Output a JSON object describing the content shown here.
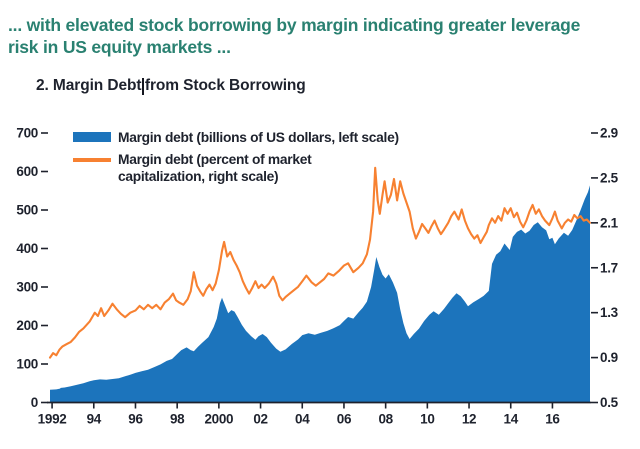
{
  "header": {
    "line1": "... with elevated stock borrowing by margin indicating greater leverage",
    "line2": "risk in US equity markets ...",
    "color": "#2a8171"
  },
  "figure": {
    "title_part1": "2. Margin Debt",
    "title_part2": "from Stock Borrowing",
    "title_full": "2. Margin Debt from Stock Borrowing",
    "cursor_color": "#14161f"
  },
  "text_color": "#1e222d",
  "chart_data": {
    "type": "area",
    "title": "2. Margin Debt from Stock Borrowing",
    "grid": false,
    "legend_position": "top-left",
    "series": [
      {
        "name": "Margin debt (billions of US dollars, left scale)",
        "style": "area",
        "axis": "left",
        "color": "#1c74bc",
        "x": [
          1991.9,
          1992.2,
          1992.38,
          1992.42,
          1992.6,
          1992.9,
          1993.2,
          1993.5,
          1993.8,
          1994.0,
          1994.3,
          1994.6,
          1994.9,
          1995.2,
          1995.5,
          1995.8,
          1996.0,
          1996.3,
          1996.6,
          1996.9,
          1997.2,
          1997.5,
          1997.75,
          1997.85,
          1998.0,
          1998.2,
          1998.45,
          1998.65,
          1998.8,
          1999.0,
          1999.2,
          1999.5,
          1999.75,
          1999.9,
          2000.05,
          2000.15,
          2000.3,
          2000.45,
          2000.6,
          2000.75,
          2000.9,
          2001.1,
          2001.3,
          2001.55,
          2001.75,
          2001.9,
          2002.1,
          2002.3,
          2002.5,
          2002.75,
          2002.95,
          2003.2,
          2003.5,
          2003.8,
          2004.0,
          2004.3,
          2004.6,
          2004.9,
          2005.2,
          2005.5,
          2005.8,
          2006.0,
          2006.2,
          2006.45,
          2006.7,
          2006.9,
          2007.1,
          2007.3,
          2007.45,
          2007.55,
          2007.7,
          2007.85,
          2008.0,
          2008.15,
          2008.35,
          2008.55,
          2008.7,
          2008.85,
          2009.0,
          2009.15,
          2009.35,
          2009.6,
          2009.85,
          2010.1,
          2010.3,
          2010.55,
          2010.8,
          2011.0,
          2011.2,
          2011.4,
          2011.6,
          2011.8,
          2011.95,
          2012.2,
          2012.45,
          2012.7,
          2012.95,
          2013.1,
          2013.3,
          2013.5,
          2013.7,
          2013.95,
          2014.1,
          2014.3,
          2014.5,
          2014.7,
          2014.9,
          2015.1,
          2015.3,
          2015.5,
          2015.7,
          2015.85,
          2016.0,
          2016.12,
          2016.3,
          2016.55,
          2016.75,
          2016.95,
          2017.15,
          2017.35,
          2017.55,
          2017.7,
          2017.8
        ],
        "values": [
          33,
          34,
          36,
          38,
          39,
          42,
          46,
          50,
          55,
          58,
          60,
          59,
          61,
          63,
          68,
          73,
          77,
          81,
          85,
          92,
          99,
          108,
          113,
          118,
          126,
          136,
          143,
          136,
          133,
          145,
          155,
          170,
          196,
          218,
          258,
          272,
          252,
          232,
          240,
          236,
          222,
          202,
          186,
          172,
          163,
          172,
          178,
          170,
          155,
          140,
          132,
          138,
          152,
          164,
          175,
          180,
          176,
          181,
          186,
          193,
          201,
          212,
          222,
          218,
          234,
          246,
          262,
          300,
          345,
          378,
          352,
          332,
          322,
          333,
          312,
          285,
          242,
          206,
          180,
          165,
          178,
          192,
          212,
          228,
          237,
          228,
          243,
          258,
          272,
          284,
          276,
          262,
          250,
          260,
          268,
          277,
          290,
          360,
          384,
          393,
          413,
          396,
          430,
          443,
          449,
          439,
          446,
          461,
          468,
          455,
          447,
          424,
          428,
          411,
          426,
          441,
          433,
          448,
          473,
          500,
          528,
          546,
          564
        ]
      },
      {
        "name": "Margin debt (percent of market capitalization, right scale)",
        "style": "line",
        "axis": "right",
        "color": "#f78131",
        "x": [
          1991.9,
          1992.05,
          1992.2,
          1992.35,
          1992.5,
          1992.7,
          1992.9,
          1993.1,
          1993.3,
          1993.5,
          1993.8,
          1994.05,
          1994.2,
          1994.35,
          1994.5,
          1994.7,
          1994.9,
          1995.1,
          1995.3,
          1995.5,
          1995.75,
          1996.0,
          1996.2,
          1996.4,
          1996.6,
          1996.8,
          1997.0,
          1997.2,
          1997.4,
          1997.6,
          1997.8,
          1997.95,
          1998.1,
          1998.3,
          1998.5,
          1998.65,
          1998.8,
          1998.95,
          1999.1,
          1999.25,
          1999.4,
          1999.55,
          1999.7,
          1999.85,
          2000.0,
          2000.15,
          2000.25,
          2000.4,
          2000.55,
          2000.7,
          2000.85,
          2001.0,
          2001.15,
          2001.3,
          2001.45,
          2001.6,
          2001.75,
          2001.9,
          2002.05,
          2002.2,
          2002.4,
          2002.6,
          2002.75,
          2002.9,
          2003.05,
          2003.2,
          2003.4,
          2003.6,
          2003.8,
          2004.0,
          2004.2,
          2004.45,
          2004.65,
          2004.85,
          2005.05,
          2005.25,
          2005.5,
          2005.75,
          2006.0,
          2006.2,
          2006.45,
          2006.7,
          2006.9,
          2007.1,
          2007.25,
          2007.4,
          2007.5,
          2007.62,
          2007.72,
          2007.85,
          2007.95,
          2008.1,
          2008.25,
          2008.4,
          2008.55,
          2008.7,
          2008.85,
          2009.0,
          2009.15,
          2009.3,
          2009.45,
          2009.6,
          2009.75,
          2009.9,
          2010.05,
          2010.2,
          2010.35,
          2010.5,
          2010.65,
          2010.8,
          2011.0,
          2011.15,
          2011.3,
          2011.5,
          2011.65,
          2011.8,
          2011.95,
          2012.1,
          2012.25,
          2012.4,
          2012.55,
          2012.7,
          2012.85,
          2012.95,
          2013.1,
          2013.25,
          2013.4,
          2013.55,
          2013.7,
          2013.85,
          2014.0,
          2014.15,
          2014.3,
          2014.45,
          2014.6,
          2014.75,
          2014.9,
          2015.05,
          2015.2,
          2015.35,
          2015.5,
          2015.65,
          2015.85,
          2016.0,
          2016.12,
          2016.25,
          2016.45,
          2016.6,
          2016.75,
          2016.9,
          2017.05,
          2017.2,
          2017.35,
          2017.5,
          2017.65,
          2017.8
        ],
        "values": [
          0.9,
          0.94,
          0.92,
          0.97,
          1.0,
          1.02,
          1.04,
          1.08,
          1.13,
          1.16,
          1.22,
          1.3,
          1.27,
          1.34,
          1.27,
          1.32,
          1.38,
          1.33,
          1.29,
          1.26,
          1.3,
          1.32,
          1.36,
          1.33,
          1.37,
          1.34,
          1.37,
          1.33,
          1.39,
          1.42,
          1.47,
          1.41,
          1.39,
          1.37,
          1.42,
          1.49,
          1.66,
          1.54,
          1.49,
          1.45,
          1.51,
          1.55,
          1.5,
          1.56,
          1.68,
          1.85,
          1.93,
          1.8,
          1.84,
          1.77,
          1.72,
          1.66,
          1.58,
          1.52,
          1.47,
          1.52,
          1.58,
          1.52,
          1.55,
          1.52,
          1.56,
          1.62,
          1.56,
          1.45,
          1.41,
          1.44,
          1.47,
          1.5,
          1.53,
          1.58,
          1.63,
          1.57,
          1.54,
          1.57,
          1.6,
          1.65,
          1.63,
          1.67,
          1.72,
          1.74,
          1.66,
          1.7,
          1.74,
          1.82,
          1.95,
          2.2,
          2.59,
          2.3,
          2.18,
          2.35,
          2.47,
          2.28,
          2.35,
          2.49,
          2.3,
          2.47,
          2.36,
          2.28,
          2.2,
          2.05,
          1.96,
          2.02,
          2.09,
          2.05,
          2.01,
          2.07,
          2.12,
          2.05,
          2.0,
          2.04,
          2.1,
          2.16,
          2.2,
          2.13,
          2.22,
          2.12,
          2.05,
          2.0,
          1.96,
          1.99,
          1.92,
          1.97,
          2.02,
          2.08,
          2.14,
          2.1,
          2.16,
          2.12,
          2.23,
          2.18,
          2.23,
          2.15,
          2.19,
          2.11,
          2.06,
          2.12,
          2.2,
          2.26,
          2.18,
          2.22,
          2.16,
          2.12,
          2.08,
          2.14,
          2.2,
          2.12,
          2.05,
          2.1,
          2.13,
          2.11,
          2.17,
          2.14,
          2.16,
          2.12,
          2.13,
          2.1
        ]
      }
    ],
    "x_axis": {
      "range": [
        1991.9,
        2017.85
      ],
      "tick_years": [
        1992,
        1994,
        1996,
        1998,
        2000,
        2002,
        2004,
        2006,
        2008,
        2010,
        2012,
        2014,
        2016
      ],
      "tick_labels": [
        "1992",
        "94",
        "96",
        "98",
        "2000",
        "02",
        "04",
        "06",
        "08",
        "10",
        "12",
        "14",
        "16"
      ]
    },
    "left_axis": {
      "range": [
        0,
        700
      ],
      "ticks": [
        0,
        100,
        200,
        300,
        400,
        500,
        600,
        700
      ],
      "tick_labels": [
        "0",
        "100",
        "200",
        "300",
        "400",
        "500",
        "600",
        "700"
      ]
    },
    "right_axis": {
      "range": [
        0.5,
        2.9
      ],
      "ticks": [
        0.5,
        0.9,
        1.3,
        1.7,
        2.1,
        2.5,
        2.9
      ],
      "tick_labels": [
        "0.5",
        "0.9",
        "1.3",
        "1.7",
        "2.1",
        "2.5",
        "2.9"
      ]
    }
  }
}
